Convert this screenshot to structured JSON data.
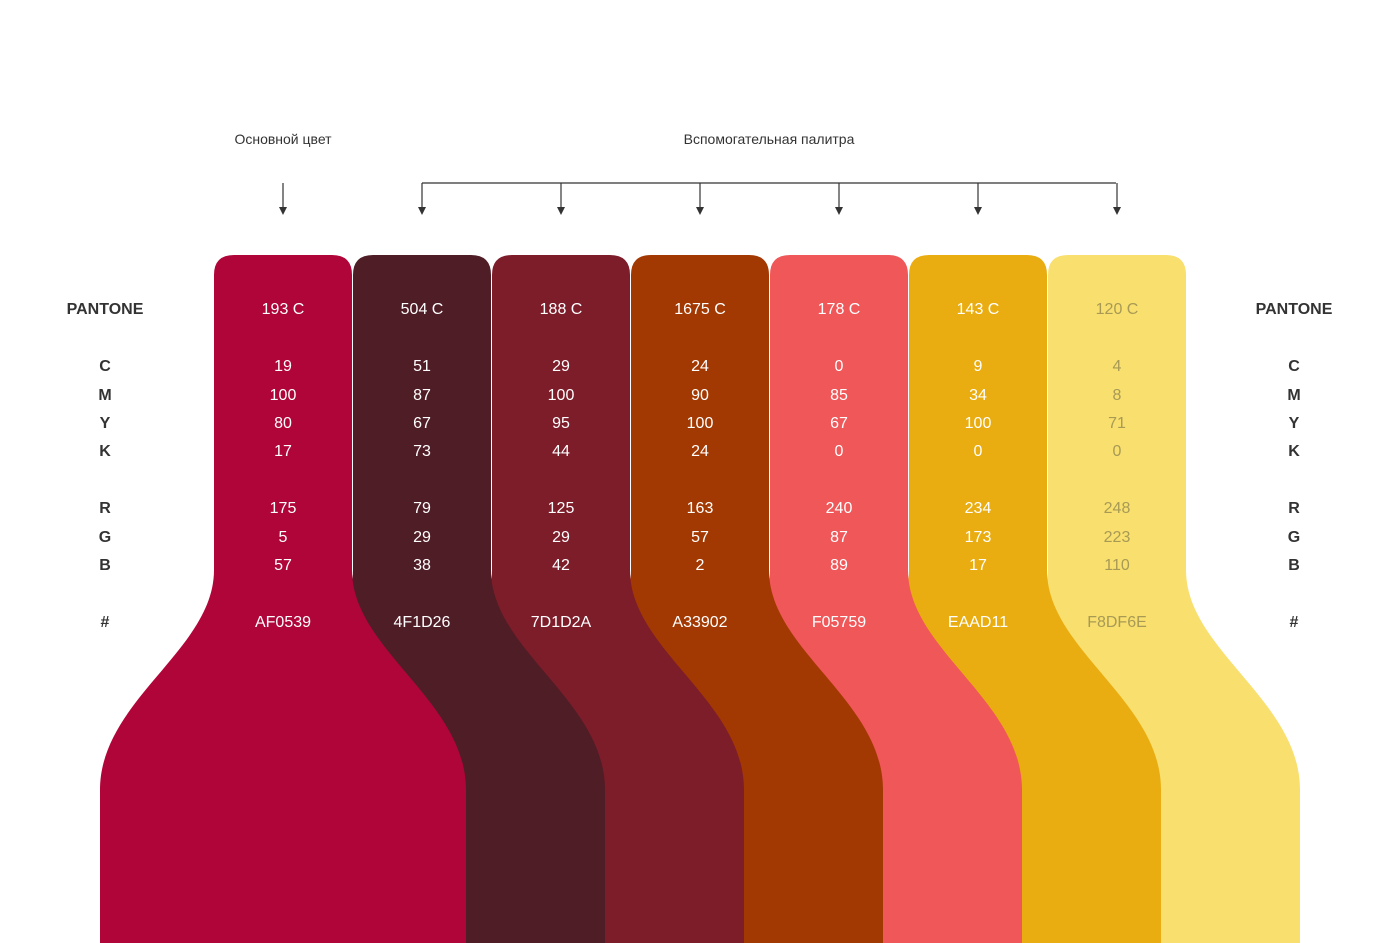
{
  "header": {
    "primary_label": "Основной цвет",
    "secondary_label": "Вспомогательная палитра"
  },
  "row_labels": {
    "pantone": "PANTONE",
    "c": "C",
    "m": "M",
    "y": "Y",
    "k": "K",
    "r": "R",
    "g": "G",
    "b": "B",
    "hex": "#"
  },
  "swatches": [
    {
      "pantone": "193 C",
      "c": "19",
      "m": "100",
      "y": "80",
      "k": "17",
      "r": "175",
      "g": "5",
      "b": "57",
      "hex": "AF0539",
      "color": "#AF0539",
      "text_color": "#ffffff"
    },
    {
      "pantone": "504 C",
      "c": "51",
      "m": "87",
      "y": "67",
      "k": "73",
      "r": "79",
      "g": "29",
      "b": "38",
      "hex": "4F1D26",
      "color": "#4F1D26",
      "text_color": "#ffffff"
    },
    {
      "pantone": "188 C",
      "c": "29",
      "m": "100",
      "y": "95",
      "k": "44",
      "r": "125",
      "g": "29",
      "b": "42",
      "hex": "7D1D2A",
      "color": "#7D1D2A",
      "text_color": "#ffffff"
    },
    {
      "pantone": "1675 C",
      "c": "24",
      "m": "90",
      "y": "100",
      "k": "24",
      "r": "163",
      "g": "57",
      "b": "2",
      "hex": "A33902",
      "color": "#A33902",
      "text_color": "#ffffff"
    },
    {
      "pantone": "178 C",
      "c": "0",
      "m": "85",
      "y": "67",
      "k": "0",
      "r": "240",
      "g": "87",
      "b": "89",
      "hex": "F05759",
      "color": "#F05759",
      "text_color": "#ffffff"
    },
    {
      "pantone": "143 C",
      "c": "9",
      "m": "34",
      "y": "100",
      "k": "0",
      "r": "234",
      "g": "173",
      "b": "17",
      "hex": "EAAD11",
      "color": "#EAAD11",
      "text_color": "#ffffff"
    },
    {
      "pantone": "120 C",
      "c": "4",
      "m": "8",
      "y": "71",
      "k": "0",
      "r": "248",
      "g": "223",
      "b": "110",
      "hex": "F8DF6E",
      "color": "#F8DF6E",
      "text_color": "#A89A55"
    }
  ]
}
